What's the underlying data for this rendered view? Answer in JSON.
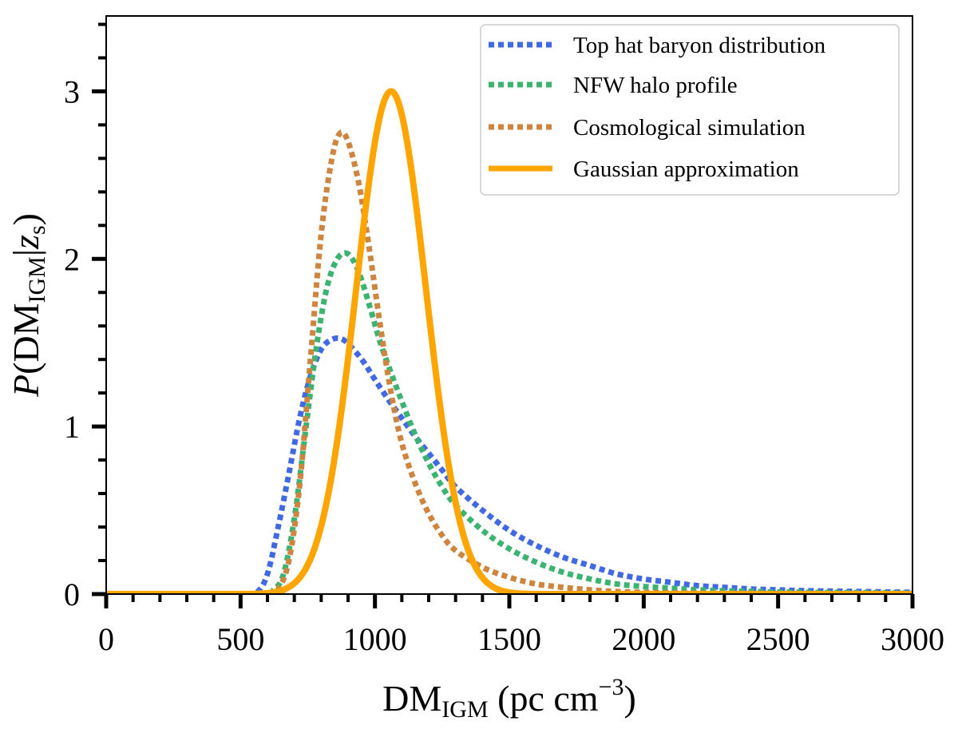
{
  "chart_data": {
    "type": "line",
    "title": "",
    "xlabel": {
      "main": "DM",
      "sub": "IGM",
      "rest": " (pc cm",
      "sup": "−3",
      "close": ")"
    },
    "ylabel": {
      "italic": "P",
      "open": "(DM",
      "sub": "IGM",
      "bar": "|",
      "zvar": "z",
      "zsub": "s",
      "close": ")"
    },
    "xlim": [
      0,
      3000
    ],
    "ylim": [
      0,
      3.45
    ],
    "xticks": [
      0,
      500,
      1000,
      1500,
      2000,
      2500,
      3000
    ],
    "xtick_labels": [
      "0",
      "500",
      "1000",
      "1500",
      "2000",
      "2500",
      "3000"
    ],
    "yticks": [
      0,
      1,
      2,
      3
    ],
    "ytick_labels": [
      "0",
      "1",
      "2",
      "3"
    ],
    "x_minor_step": 100,
    "y_minor_step": 0.2,
    "legend_position": "top-right",
    "series": [
      {
        "name": "Top hat baryon distribution",
        "color": "#4169e1",
        "style": "dotted",
        "x": [
          0,
          500,
          560,
          600,
          640,
          680,
          720,
          760,
          800,
          840,
          880,
          920,
          960,
          1000,
          1050,
          1100,
          1150,
          1200,
          1250,
          1300,
          1400,
          1500,
          1600,
          1700,
          1800,
          1900,
          2000,
          2100,
          2200,
          2300,
          2400,
          2500,
          2600,
          2800,
          3000
        ],
        "y": [
          0,
          0,
          0.01,
          0.12,
          0.4,
          0.72,
          1.05,
          1.3,
          1.46,
          1.52,
          1.52,
          1.46,
          1.38,
          1.28,
          1.16,
          1.05,
          0.94,
          0.84,
          0.74,
          0.64,
          0.5,
          0.38,
          0.29,
          0.22,
          0.17,
          0.12,
          0.09,
          0.07,
          0.05,
          0.04,
          0.03,
          0.025,
          0.02,
          0.015,
          0.01
        ]
      },
      {
        "name": "NFW halo profile",
        "color": "#3cb371",
        "style": "dotted",
        "x": [
          0,
          580,
          620,
          660,
          700,
          740,
          780,
          820,
          860,
          900,
          940,
          980,
          1020,
          1060,
          1100,
          1150,
          1200,
          1250,
          1300,
          1400,
          1500,
          1600,
          1700,
          1800,
          1900,
          2000,
          2100,
          2200,
          2400,
          2600,
          2800,
          3000
        ],
        "y": [
          0,
          0,
          0.02,
          0.12,
          0.45,
          0.95,
          1.45,
          1.82,
          2.0,
          2.03,
          1.92,
          1.72,
          1.5,
          1.32,
          1.15,
          0.95,
          0.78,
          0.64,
          0.53,
          0.38,
          0.27,
          0.19,
          0.13,
          0.09,
          0.06,
          0.045,
          0.035,
          0.025,
          0.015,
          0.01,
          0.008,
          0.005
        ]
      },
      {
        "name": "Cosmological simulation",
        "color": "#cd853f",
        "style": "dotted",
        "x": [
          0,
          600,
          640,
          680,
          720,
          760,
          800,
          840,
          870,
          900,
          940,
          980,
          1020,
          1060,
          1100,
          1150,
          1200,
          1250,
          1300,
          1400,
          1500,
          1600,
          1700,
          1800,
          1900,
          2000,
          2100,
          2200,
          2400,
          2600,
          2800,
          3000
        ],
        "y": [
          0,
          0,
          0.03,
          0.2,
          0.65,
          1.4,
          2.15,
          2.6,
          2.75,
          2.7,
          2.45,
          2.05,
          1.6,
          1.2,
          0.9,
          0.66,
          0.48,
          0.35,
          0.26,
          0.16,
          0.1,
          0.06,
          0.04,
          0.025,
          0.015,
          0.01,
          0.007,
          0.005,
          0.003,
          0.002,
          0.001,
          0.001
        ]
      },
      {
        "name": "Gaussian approximation",
        "color": "#ffa500",
        "style": "solid",
        "gaussian": {
          "mean": 1060,
          "sigma": 130,
          "peak": 3.0
        }
      }
    ]
  }
}
